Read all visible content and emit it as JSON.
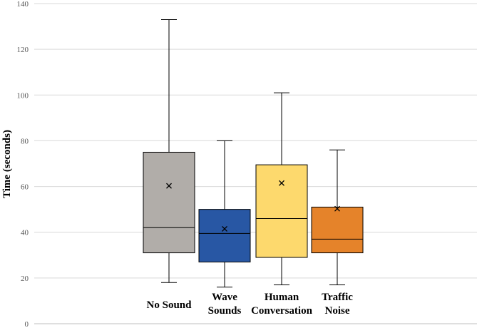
{
  "chart_data": {
    "type": "box",
    "ylabel": "Time (seconds)",
    "xlabel": "",
    "ylim": [
      0,
      140
    ],
    "yticks": [
      0,
      20,
      40,
      60,
      80,
      100,
      120,
      140
    ],
    "grid": true,
    "categories": [
      [
        "No Sound"
      ],
      [
        "Wave",
        "Sounds"
      ],
      [
        "Human",
        "Conversation"
      ],
      [
        "Traffic",
        "Noise"
      ]
    ],
    "series": [
      {
        "min": 18,
        "q1": 31,
        "median": 42,
        "q3": 75,
        "max": 133,
        "mean": 60.3,
        "color": "#B1ADA9"
      },
      {
        "min": 16,
        "q1": 27,
        "median": 39.5,
        "q3": 50,
        "max": 80,
        "mean": 41.5,
        "color": "#2857A4"
      },
      {
        "min": 17,
        "q1": 29,
        "median": 46,
        "q3": 69.5,
        "max": 101,
        "mean": 61.5,
        "color": "#FDD96D"
      },
      {
        "min": 17,
        "q1": 31,
        "median": 37,
        "q3": 51,
        "max": 76,
        "mean": 50.3,
        "color": "#E5832A"
      }
    ]
  }
}
